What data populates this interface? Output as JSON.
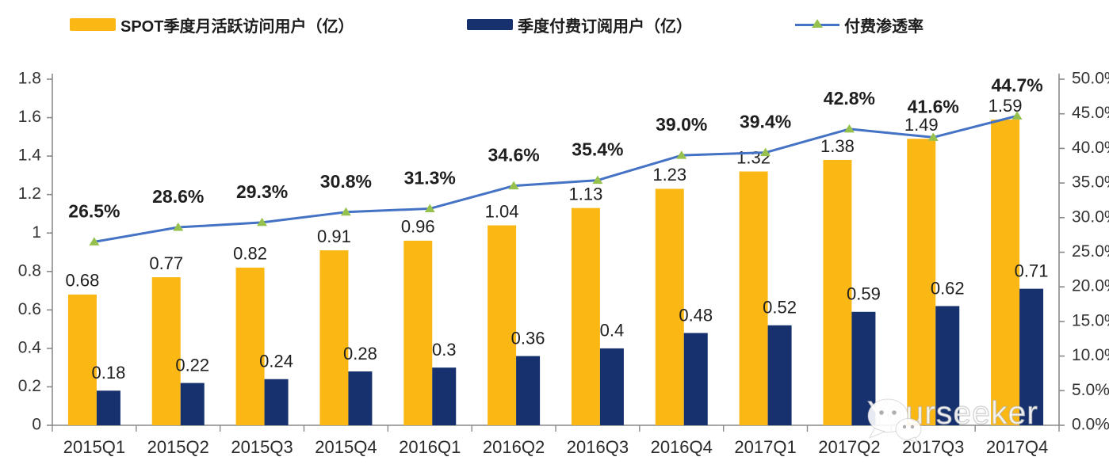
{
  "chart_data": {
    "type": "bar",
    "subtype": "grouped-bars-with-line-combo",
    "categories": [
      "2015Q1",
      "2015Q2",
      "2015Q3",
      "2015Q4",
      "2016Q1",
      "2016Q2",
      "2016Q3",
      "2016Q4",
      "2017Q1",
      "2017Q2",
      "2017Q3",
      "2017Q4"
    ],
    "series": [
      {
        "name": "SPOT季度月活跃访问用户（亿）",
        "type": "bar",
        "axis": "left",
        "color": "#FBB815",
        "values": [
          0.68,
          0.77,
          0.82,
          0.91,
          0.96,
          1.04,
          1.13,
          1.23,
          1.32,
          1.38,
          1.49,
          1.59
        ],
        "value_labels": [
          "0.68",
          "0.77",
          "0.82",
          "0.91",
          "0.96",
          "1.04",
          "1.13",
          "1.23",
          "1.32",
          "1.38",
          "1.49",
          "1.59"
        ]
      },
      {
        "name": "季度付费订阅用户（亿）",
        "type": "bar",
        "axis": "left",
        "color": "#16316E",
        "values": [
          0.18,
          0.22,
          0.24,
          0.28,
          0.3,
          0.36,
          0.4,
          0.48,
          0.52,
          0.59,
          0.62,
          0.71
        ],
        "value_labels": [
          "0.18",
          "0.22",
          "0.24",
          "0.28",
          "0.3",
          "0.36",
          "0.4",
          "0.48",
          "0.52",
          "0.59",
          "0.62",
          "0.71"
        ]
      },
      {
        "name": "付费渗透率",
        "type": "line",
        "axis": "right",
        "color": "#4472C4",
        "marker": "triangle-up",
        "marker_color": "#97C14E",
        "values": [
          26.5,
          28.6,
          29.3,
          30.8,
          31.3,
          34.6,
          35.4,
          39.0,
          39.4,
          42.8,
          41.6,
          44.7
        ],
        "value_labels": [
          "26.5%",
          "28.6%",
          "29.3%",
          "30.8%",
          "31.3%",
          "34.6%",
          "35.4%",
          "39.0%",
          "39.4%",
          "42.8%",
          "41.6%",
          "44.7%"
        ]
      }
    ],
    "left_axis": {
      "min": 0,
      "max": 1.8,
      "step": 0.2,
      "ticks": [
        "1.8",
        "1.6",
        "1.4",
        "1.2",
        "1",
        "0.8",
        "0.6",
        "0.4",
        "0.2",
        "0"
      ]
    },
    "right_axis": {
      "min": 0,
      "max": 50,
      "step": 5,
      "ticks": [
        "50.0%",
        "45.0%",
        "40.0%",
        "35.0%",
        "30.0%",
        "25.0%",
        "20.0%",
        "15.0%",
        "10.0%",
        "5.0%",
        "0.0%"
      ]
    },
    "grid": false,
    "legend_position": "top",
    "axis_color": "#8a8a8a",
    "tick_label_color": "#333333",
    "data_label_color": "#1f1f1f"
  },
  "watermark": {
    "text": "Yourseeker",
    "icon": "wechat-icon"
  }
}
